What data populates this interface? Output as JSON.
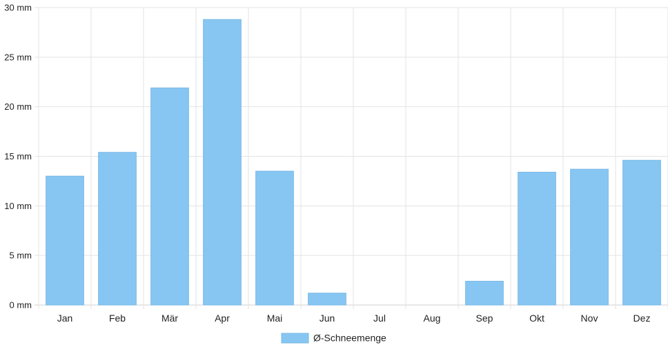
{
  "chart_data": {
    "type": "bar",
    "categories": [
      "Jan",
      "Feb",
      "Mär",
      "Apr",
      "Mai",
      "Jun",
      "Jul",
      "Aug",
      "Sep",
      "Okt",
      "Nov",
      "Dez"
    ],
    "series": [
      {
        "name": "Ø-Schneemenge",
        "values": [
          13.0,
          15.4,
          21.9,
          28.8,
          13.5,
          1.2,
          0,
          0,
          2.4,
          13.4,
          13.7,
          14.6
        ],
        "color": "#87c6f2"
      }
    ],
    "yticks": [
      "0 mm",
      "5 mm",
      "10 mm",
      "15 mm",
      "20 mm",
      "25 mm",
      "30 mm"
    ],
    "ylim": [
      0,
      30
    ],
    "grid": true,
    "legend_position": "bottom-center"
  }
}
